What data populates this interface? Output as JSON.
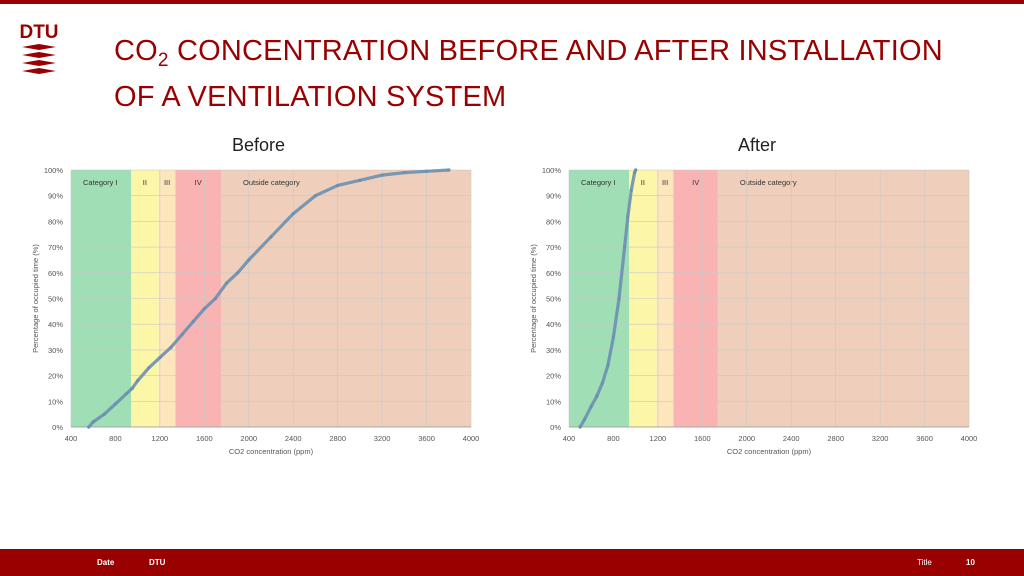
{
  "header": {
    "logo_text": "DTU",
    "title_prefix": "CO",
    "title_sub": "2",
    "title_rest_line1": " CONCENTRATION BEFORE AND AFTER INSTALLATION",
    "title_line2": "OF A VENTILATION SYSTEM"
  },
  "panels": {
    "before_label": "Before",
    "after_label": "After"
  },
  "footer": {
    "date": "Date",
    "org": "DTU",
    "title": "Title",
    "page": "10"
  },
  "colors": {
    "brand": "#990000",
    "cat1": "#8fd8a8",
    "cat2": "#fbf59a",
    "cat3": "#fde2b0",
    "cat4": "#f9a6a6",
    "outside": "#ecc7af",
    "curve": "#6b8fb3"
  },
  "chart_data": [
    {
      "type": "line",
      "panel": "Before",
      "xlabel": "CO2 concentration (ppm)",
      "ylabel": "Percentage of occupied time (%)",
      "xlim": [
        400,
        4000
      ],
      "ylim": [
        0,
        100
      ],
      "xticks": [
        "400",
        "800",
        "1200",
        "1600",
        "2000",
        "2400",
        "2800",
        "3200",
        "3600",
        "4000"
      ],
      "yticks": [
        "0%",
        "10%",
        "20%",
        "30%",
        "40%",
        "50%",
        "60%",
        "70%",
        "80%",
        "90%",
        "100%"
      ],
      "grid": true,
      "bands": [
        {
          "label": "Category I",
          "from": 400,
          "to": 940
        },
        {
          "label": "II",
          "from": 940,
          "to": 1190
        },
        {
          "label": "III",
          "from": 1190,
          "to": 1340
        },
        {
          "label": "IV",
          "from": 1340,
          "to": 1750
        },
        {
          "label": "Outside category",
          "from": 1750,
          "to": 4000
        }
      ],
      "x": [
        560,
        600,
        700,
        800,
        900,
        950,
        1000,
        1100,
        1200,
        1300,
        1400,
        1500,
        1600,
        1700,
        1800,
        1900,
        2000,
        2200,
        2400,
        2600,
        2800,
        3000,
        3200,
        3400,
        3600,
        3800
      ],
      "y": [
        0,
        2,
        5,
        9,
        13,
        15,
        18,
        23,
        27,
        31,
        36,
        41,
        46,
        50,
        56,
        60,
        65,
        74,
        83,
        90,
        94,
        96,
        98,
        99,
        99.5,
        100
      ]
    },
    {
      "type": "line",
      "panel": "After",
      "xlabel": "CO2 concentration (ppm)",
      "ylabel": "Percentage of occupied time (%)",
      "xlim": [
        400,
        4000
      ],
      "ylim": [
        0,
        100
      ],
      "xticks": [
        "400",
        "800",
        "1200",
        "1600",
        "2000",
        "2400",
        "2800",
        "3200",
        "3600",
        "4000"
      ],
      "yticks": [
        "0%",
        "10%",
        "20%",
        "30%",
        "40%",
        "50%",
        "60%",
        "70%",
        "80%",
        "90%",
        "100%"
      ],
      "grid": true,
      "bands": [
        {
          "label": "Category I",
          "from": 400,
          "to": 940
        },
        {
          "label": "II",
          "from": 940,
          "to": 1190
        },
        {
          "label": "III",
          "from": 1190,
          "to": 1340
        },
        {
          "label": "IV",
          "from": 1340,
          "to": 1740
        },
        {
          "label": "Outside category",
          "from": 1740,
          "to": 4000
        }
      ],
      "x": [
        500,
        540,
        600,
        650,
        700,
        750,
        800,
        850,
        900,
        930,
        960,
        990,
        1000
      ],
      "y": [
        0,
        3,
        8,
        12,
        17,
        24,
        35,
        50,
        70,
        82,
        92,
        99,
        100
      ]
    }
  ]
}
